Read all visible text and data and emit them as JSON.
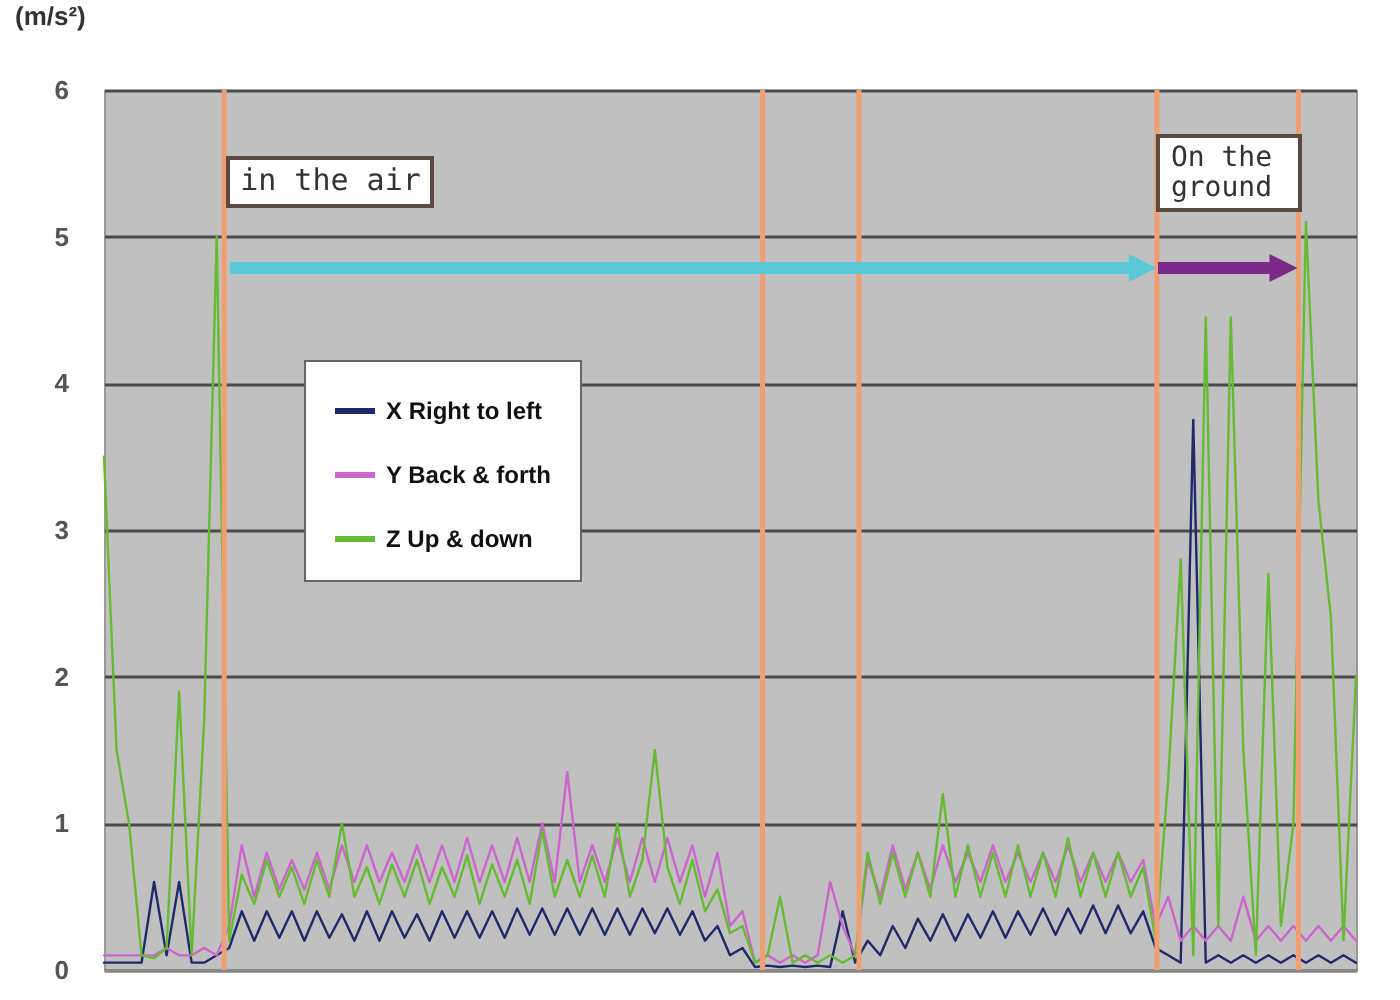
{
  "chart_data": {
    "type": "line",
    "ylabel": "(m/s²)",
    "categories": [
      null,
      null,
      null,
      null,
      null,
      null,
      null,
      null,
      null,
      null,
      null,
      null,
      null,
      null,
      null,
      null,
      null,
      null,
      null,
      null,
      null,
      null,
      null,
      null,
      null,
      null,
      null,
      null,
      null,
      null,
      null,
      null,
      null,
      null,
      null,
      null,
      null,
      null,
      null,
      null,
      null,
      null,
      null,
      null,
      null,
      null,
      null,
      null,
      null,
      null,
      null,
      null,
      null,
      null,
      null,
      null,
      null,
      null,
      null,
      null,
      null,
      null,
      null,
      null,
      null,
      null,
      null,
      null,
      null,
      null,
      null,
      null,
      null,
      null,
      null,
      null,
      null,
      null,
      null,
      null,
      null,
      null,
      null,
      null,
      null,
      null,
      null,
      null,
      null,
      null,
      null,
      null,
      null,
      null,
      null,
      null,
      null,
      null,
      null,
      null,
      null
    ],
    "ylim": [
      0,
      6
    ],
    "yticks": [
      0,
      1,
      2,
      3,
      4,
      5,
      6
    ],
    "grid": "y",
    "legend": "top left",
    "series": [
      {
        "name": "X Right to left",
        "color": "#1f2a6b",
        "values": [
          0.05,
          0.05,
          0.05,
          0.05,
          0.6,
          0.1,
          0.6,
          0.05,
          0.05,
          0.1,
          0.15,
          0.4,
          0.2,
          0.4,
          0.22,
          0.4,
          0.2,
          0.4,
          0.22,
          0.38,
          0.2,
          0.4,
          0.2,
          0.4,
          0.22,
          0.38,
          0.2,
          0.4,
          0.22,
          0.4,
          0.22,
          0.4,
          0.22,
          0.42,
          0.24,
          0.42,
          0.24,
          0.42,
          0.24,
          0.42,
          0.24,
          0.42,
          0.24,
          0.42,
          0.25,
          0.42,
          0.24,
          0.4,
          0.2,
          0.3,
          0.1,
          0.15,
          0.02,
          0.03,
          0.02,
          0.03,
          0.02,
          0.03,
          0.02,
          0.4,
          0.05,
          0.2,
          0.1,
          0.3,
          0.15,
          0.35,
          0.2,
          0.38,
          0.2,
          0.38,
          0.22,
          0.4,
          0.22,
          0.4,
          0.24,
          0.42,
          0.24,
          0.42,
          0.25,
          0.44,
          0.25,
          0.44,
          0.25,
          0.4,
          0.15,
          0.1,
          0.05,
          3.75,
          0.05,
          0.1,
          0.05,
          0.1,
          0.05,
          0.1,
          0.05,
          0.1,
          0.05,
          0.1,
          0.05,
          0.1,
          0.05
        ]
      },
      {
        "name": "Y Back & forth",
        "color": "#cc66cc",
        "values": [
          0.1,
          0.1,
          0.1,
          0.1,
          0.1,
          0.15,
          0.1,
          0.1,
          0.15,
          0.1,
          0.3,
          0.85,
          0.5,
          0.8,
          0.55,
          0.75,
          0.55,
          0.8,
          0.55,
          0.85,
          0.6,
          0.85,
          0.6,
          0.8,
          0.6,
          0.85,
          0.6,
          0.85,
          0.6,
          0.9,
          0.6,
          0.85,
          0.6,
          0.9,
          0.6,
          1.0,
          0.6,
          1.35,
          0.6,
          0.85,
          0.6,
          0.9,
          0.6,
          0.9,
          0.6,
          0.9,
          0.6,
          0.85,
          0.5,
          0.8,
          0.3,
          0.4,
          0.05,
          0.1,
          0.05,
          0.1,
          0.05,
          0.1,
          0.6,
          0.3,
          0.1,
          0.75,
          0.5,
          0.85,
          0.55,
          0.8,
          0.55,
          0.85,
          0.6,
          0.8,
          0.6,
          0.85,
          0.6,
          0.8,
          0.6,
          0.8,
          0.6,
          0.85,
          0.6,
          0.8,
          0.6,
          0.8,
          0.6,
          0.75,
          0.3,
          0.5,
          0.2,
          0.3,
          0.2,
          0.3,
          0.2,
          0.5,
          0.2,
          0.3,
          0.2,
          0.3,
          0.2,
          0.3,
          0.2,
          0.3,
          0.2
        ]
      },
      {
        "name": "Z Up & down",
        "color": "#66bb33",
        "values": [
          3.5,
          1.5,
          1.0,
          0.1,
          0.08,
          0.15,
          1.9,
          0.1,
          1.7,
          5.0,
          0.2,
          0.65,
          0.45,
          0.75,
          0.5,
          0.7,
          0.45,
          0.75,
          0.5,
          1.0,
          0.5,
          0.7,
          0.45,
          0.72,
          0.5,
          0.75,
          0.45,
          0.7,
          0.5,
          0.78,
          0.45,
          0.72,
          0.5,
          0.75,
          0.45,
          0.95,
          0.5,
          0.75,
          0.5,
          0.78,
          0.5,
          1.0,
          0.5,
          0.75,
          1.5,
          0.7,
          0.45,
          0.75,
          0.4,
          0.55,
          0.25,
          0.3,
          0.05,
          0.1,
          0.5,
          0.05,
          0.1,
          0.05,
          0.1,
          0.05,
          0.1,
          0.8,
          0.45,
          0.8,
          0.5,
          0.8,
          0.5,
          1.2,
          0.5,
          0.85,
          0.5,
          0.8,
          0.5,
          0.85,
          0.5,
          0.8,
          0.5,
          0.9,
          0.5,
          0.8,
          0.5,
          0.8,
          0.5,
          0.7,
          0.2,
          1.3,
          2.8,
          0.1,
          4.45,
          0.3,
          4.45,
          1.5,
          0.1,
          2.7,
          0.3,
          1.0,
          5.1,
          3.2,
          2.4,
          0.2,
          2.0
        ]
      }
    ],
    "annotations": [
      "in the air",
      "On the ground"
    ]
  }
}
